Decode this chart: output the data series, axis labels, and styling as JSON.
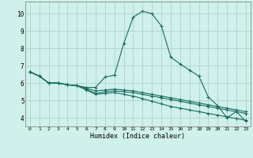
{
  "xlabel": "Humidex (Indice chaleur)",
  "xlim": [
    -0.5,
    23.5
  ],
  "ylim": [
    3.5,
    10.7
  ],
  "xticks": [
    0,
    1,
    2,
    3,
    4,
    5,
    6,
    7,
    8,
    9,
    10,
    11,
    12,
    13,
    14,
    15,
    16,
    17,
    18,
    19,
    20,
    21,
    22,
    23
  ],
  "yticks": [
    4,
    5,
    6,
    7,
    8,
    9,
    10
  ],
  "bg_color": "#cff0eb",
  "grid_color": "#aad4cd",
  "line_color": "#1a6b60",
  "lines": [
    [
      6.65,
      6.4,
      6.0,
      6.0,
      5.9,
      5.85,
      5.75,
      5.75,
      6.35,
      6.45,
      8.3,
      9.8,
      10.15,
      10.0,
      9.3,
      7.5,
      7.1,
      6.75,
      6.4,
      5.2,
      4.7,
      4.0,
      4.35,
      3.8
    ],
    [
      6.65,
      6.4,
      6.0,
      6.0,
      5.9,
      5.85,
      5.7,
      5.55,
      5.6,
      5.65,
      5.6,
      5.55,
      5.45,
      5.35,
      5.25,
      5.15,
      5.05,
      4.95,
      4.85,
      4.75,
      4.65,
      4.55,
      4.45,
      4.35
    ],
    [
      6.65,
      6.4,
      6.0,
      6.0,
      5.9,
      5.85,
      5.65,
      5.4,
      5.5,
      5.55,
      5.5,
      5.45,
      5.35,
      5.25,
      5.15,
      5.05,
      4.95,
      4.85,
      4.75,
      4.65,
      4.55,
      4.45,
      4.35,
      4.25
    ],
    [
      6.65,
      6.4,
      6.0,
      6.0,
      5.9,
      5.85,
      5.6,
      5.35,
      5.4,
      5.45,
      5.35,
      5.25,
      5.1,
      4.95,
      4.8,
      4.65,
      4.55,
      4.45,
      4.35,
      4.25,
      4.15,
      4.05,
      3.95,
      3.85
    ]
  ]
}
